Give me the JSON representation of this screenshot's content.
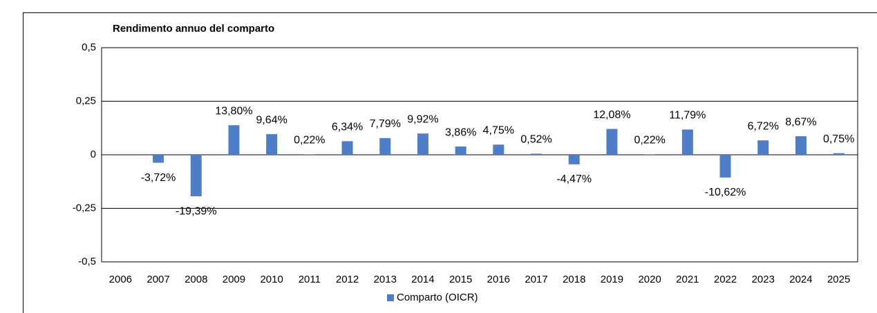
{
  "chart_data": {
    "type": "bar",
    "title": "Rendimento annuo del comparto",
    "categories": [
      "2006",
      "2007",
      "2008",
      "2009",
      "2010",
      "2011",
      "2012",
      "2013",
      "2014",
      "2015",
      "2016",
      "2017",
      "2018",
      "2019",
      "2020",
      "2021",
      "2022",
      "2023",
      "2024",
      "2025"
    ],
    "series": [
      {
        "name": "Comparto (OICR)",
        "color": "#4f7ec8",
        "values": [
          null,
          -0.0372,
          -0.1939,
          0.138,
          0.0964,
          0.0022,
          0.0634,
          0.0779,
          0.0992,
          0.0386,
          0.0475,
          0.0052,
          -0.0447,
          0.1208,
          0.0022,
          0.1179,
          -0.1062,
          0.0672,
          0.0867,
          0.0075
        ],
        "value_labels": [
          null,
          "-3,72%",
          "-19,39%",
          "13,80%",
          "9,64%",
          "0,22%",
          "6,34%",
          "7,79%",
          "9,92%",
          "3,86%",
          "4,75%",
          "0,52%",
          "-4,47%",
          "12,08%",
          "0,22%",
          "11,79%",
          "-10,62%",
          "6,72%",
          "8,67%",
          "0,75%"
        ]
      }
    ],
    "ylim": [
      -0.5,
      0.5
    ],
    "yticks": [
      {
        "value": -0.5,
        "label": "-0,5"
      },
      {
        "value": -0.25,
        "label": "-0,25"
      },
      0,
      {
        "value": 0.25,
        "label": "0,25"
      },
      {
        "value": 0.5,
        "label": "0,5"
      }
    ],
    "grid": true,
    "legend": "bottom"
  }
}
